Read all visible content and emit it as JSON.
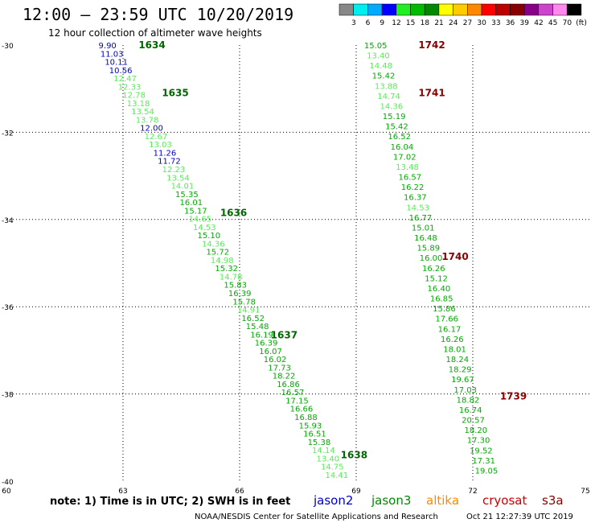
{
  "header": {
    "title": "12:00 — 23:59 UTC 10/20/2019",
    "subtitle": "12 hour collection of altimeter wave heights"
  },
  "colorbar": {
    "colors": [
      "#888888",
      "#00eeee",
      "#00aaff",
      "#0000ff",
      "#22ee22",
      "#00bb00",
      "#008800",
      "#ffff00",
      "#ffcc00",
      "#ff8800",
      "#ff0000",
      "#bb0000",
      "#880000",
      "#880088",
      "#cc44cc",
      "#ff88ee",
      "#000000"
    ],
    "labels": [
      "3",
      "6",
      "9",
      "12",
      "15",
      "18",
      "21",
      "24",
      "27",
      "30",
      "33",
      "36",
      "39",
      "42",
      "45",
      "70",
      "(ft)"
    ]
  },
  "note": "note:  1) Time is in UTC; 2) SWH is in feet",
  "legend": [
    {
      "name": "jason2",
      "color": "#0000cc"
    },
    {
      "name": "jason3",
      "color": "#008800"
    },
    {
      "name": "altika",
      "color": "#ff8800"
    },
    {
      "name": "cryosat",
      "color": "#cc0000"
    },
    {
      "name": "s3a",
      "color": "#880000"
    }
  ],
  "footer": {
    "center": "NOAA/NESDIS Center for Satellite Applications and Research",
    "timestamp": "Oct 21 12:27:39 UTC 2019"
  },
  "chart_data": {
    "type": "scatter",
    "xlim": [
      60,
      75
    ],
    "ylim": [
      -40,
      -30
    ],
    "xticks": [
      "60",
      "63",
      "66",
      "69",
      "72",
      "75"
    ],
    "yticks": [
      "-30",
      "-32",
      "-34",
      "-36",
      "-38",
      "-40"
    ],
    "grid": true,
    "colors": {
      "blue": "#0000cc",
      "light": "#55ee55",
      "mid": "#00aa00",
      "dark": "#006600",
      "maroon": "#880000"
    },
    "left_track": [
      {
        "v": "9.90",
        "c": "blue"
      },
      {
        "v": "11.03",
        "c": "blue"
      },
      {
        "v": "10.11",
        "c": "blue"
      },
      {
        "v": "10.56",
        "c": "blue"
      },
      {
        "v": "12.47",
        "c": "light"
      },
      {
        "v": "12.33",
        "c": "light"
      },
      {
        "v": "12.78",
        "c": "light"
      },
      {
        "v": "13.18",
        "c": "light"
      },
      {
        "v": "13.54",
        "c": "light"
      },
      {
        "v": "13.78",
        "c": "light"
      },
      {
        "v": "12.00",
        "c": "blue"
      },
      {
        "v": "12.67",
        "c": "light"
      },
      {
        "v": "13.03",
        "c": "light"
      },
      {
        "v": "11.26",
        "c": "blue"
      },
      {
        "v": "11.72",
        "c": "blue"
      },
      {
        "v": "12.23",
        "c": "light"
      },
      {
        "v": "13.54",
        "c": "light"
      },
      {
        "v": "14.01",
        "c": "light"
      },
      {
        "v": "15.35",
        "c": "mid"
      },
      {
        "v": "16.01",
        "c": "mid"
      },
      {
        "v": "15.17",
        "c": "mid"
      },
      {
        "v": "14.65",
        "c": "light"
      },
      {
        "v": "14.53",
        "c": "light"
      },
      {
        "v": "15.10",
        "c": "mid"
      },
      {
        "v": "14.36",
        "c": "light"
      },
      {
        "v": "15.72",
        "c": "mid"
      },
      {
        "v": "14.98",
        "c": "light"
      },
      {
        "v": "15.32",
        "c": "mid"
      },
      {
        "v": "14.78",
        "c": "light"
      },
      {
        "v": "15.83",
        "c": "mid"
      },
      {
        "v": "16.39",
        "c": "mid"
      },
      {
        "v": "15.78",
        "c": "mid"
      },
      {
        "v": "14.91",
        "c": "light"
      },
      {
        "v": "16.52",
        "c": "mid"
      },
      {
        "v": "15.48",
        "c": "mid"
      },
      {
        "v": "16.19",
        "c": "mid"
      },
      {
        "v": "16.39",
        "c": "mid"
      },
      {
        "v": "16.07",
        "c": "mid"
      },
      {
        "v": "16.02",
        "c": "mid"
      },
      {
        "v": "17.73",
        "c": "mid"
      },
      {
        "v": "18.22",
        "c": "mid"
      },
      {
        "v": "16.86",
        "c": "mid"
      },
      {
        "v": "16.57",
        "c": "mid"
      },
      {
        "v": "17.15",
        "c": "mid"
      },
      {
        "v": "16.66",
        "c": "mid"
      },
      {
        "v": "16.88",
        "c": "mid"
      },
      {
        "v": "15.93",
        "c": "mid"
      },
      {
        "v": "16.51",
        "c": "mid"
      },
      {
        "v": "15.38",
        "c": "mid"
      },
      {
        "v": "14.14",
        "c": "light"
      },
      {
        "v": "13.40",
        "c": "light"
      },
      {
        "v": "14.75",
        "c": "light"
      },
      {
        "v": "14.41",
        "c": "light"
      }
    ],
    "left_start": [
      62.6,
      -30.0
    ],
    "left_end": [
      68.5,
      -39.85
    ],
    "right_track": [
      {
        "v": "15.05",
        "c": "mid"
      },
      {
        "v": "13.40",
        "c": "light"
      },
      {
        "v": "14.48",
        "c": "light"
      },
      {
        "v": "15.42",
        "c": "mid"
      },
      {
        "v": "13.88",
        "c": "light"
      },
      {
        "v": "14.74",
        "c": "light"
      },
      {
        "v": "14.36",
        "c": "light"
      },
      {
        "v": "15.19",
        "c": "mid"
      },
      {
        "v": "15.42",
        "c": "mid"
      },
      {
        "v": "16.52",
        "c": "mid"
      },
      {
        "v": "16.04",
        "c": "mid"
      },
      {
        "v": "17.02",
        "c": "mid"
      },
      {
        "v": "13.48",
        "c": "light"
      },
      {
        "v": "16.57",
        "c": "mid"
      },
      {
        "v": "16.22",
        "c": "mid"
      },
      {
        "v": "16.37",
        "c": "mid"
      },
      {
        "v": "14.53",
        "c": "light"
      },
      {
        "v": "16.77",
        "c": "mid"
      },
      {
        "v": "15.01",
        "c": "mid"
      },
      {
        "v": "16.48",
        "c": "mid"
      },
      {
        "v": "15.89",
        "c": "mid"
      },
      {
        "v": "16.00",
        "c": "mid"
      },
      {
        "v": "16.26",
        "c": "mid"
      },
      {
        "v": "15.12",
        "c": "mid"
      },
      {
        "v": "16.40",
        "c": "mid"
      },
      {
        "v": "16.85",
        "c": "mid"
      },
      {
        "v": "15.86",
        "c": "mid"
      },
      {
        "v": "17.66",
        "c": "mid"
      },
      {
        "v": "16.17",
        "c": "mid"
      },
      {
        "v": "16.26",
        "c": "mid"
      },
      {
        "v": "18.01",
        "c": "mid"
      },
      {
        "v": "18.24",
        "c": "mid"
      },
      {
        "v": "18.29",
        "c": "mid"
      },
      {
        "v": "19.67",
        "c": "mid"
      },
      {
        "v": "17.03",
        "c": "mid"
      },
      {
        "v": "18.82",
        "c": "mid"
      },
      {
        "v": "16.74",
        "c": "mid"
      },
      {
        "v": "20.57",
        "c": "mid"
      },
      {
        "v": "18.20",
        "c": "mid"
      },
      {
        "v": "17.30",
        "c": "mid"
      },
      {
        "v": "19.52",
        "c": "mid"
      },
      {
        "v": "17.31",
        "c": "mid"
      },
      {
        "v": "19.05",
        "c": "mid"
      }
    ],
    "right_start": [
      69.5,
      -30.0
    ],
    "right_end": [
      72.35,
      -39.75
    ],
    "time_labels": [
      {
        "t": "1634",
        "x": 63.4,
        "y": -30.0,
        "c": "dark"
      },
      {
        "t": "1635",
        "x": 64.0,
        "y": -31.1,
        "c": "dark"
      },
      {
        "t": "1636",
        "x": 65.5,
        "y": -33.85,
        "c": "dark"
      },
      {
        "t": "1637",
        "x": 66.8,
        "y": -36.65,
        "c": "dark"
      },
      {
        "t": "1638",
        "x": 68.6,
        "y": -39.4,
        "c": "dark"
      },
      {
        "t": "1742",
        "x": 70.6,
        "y": -30.0,
        "c": "maroon"
      },
      {
        "t": "1741",
        "x": 70.6,
        "y": -31.1,
        "c": "maroon"
      },
      {
        "t": "1740",
        "x": 71.2,
        "y": -34.85,
        "c": "maroon"
      },
      {
        "t": "1739",
        "x": 72.7,
        "y": -38.05,
        "c": "maroon"
      }
    ]
  }
}
